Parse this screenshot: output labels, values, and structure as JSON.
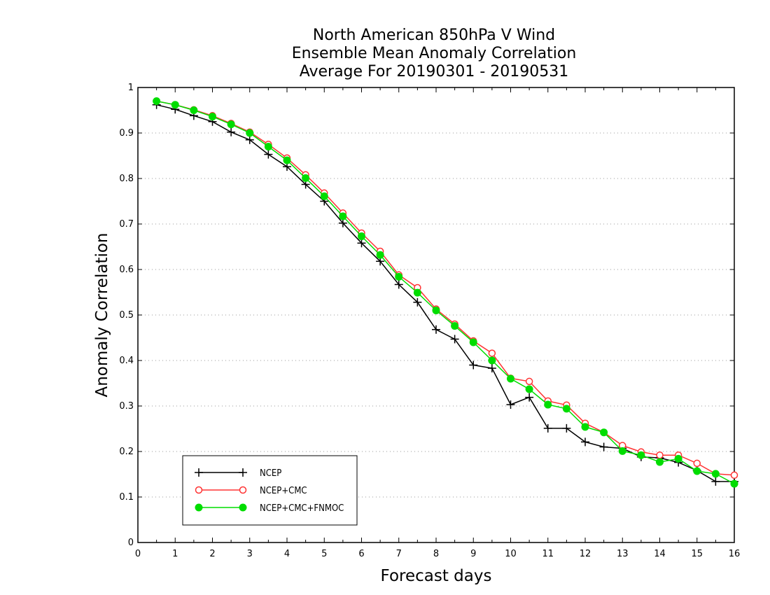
{
  "chart_data": {
    "type": "line",
    "title": [
      "North American 850hPa V Wind",
      "Ensemble Mean Anomaly Correlation",
      "Average For 20190301 - 20190531"
    ],
    "xlabel": "Forecast days",
    "ylabel": "Anomaly Correlation",
    "xlim": [
      0,
      16
    ],
    "ylim": [
      0,
      1
    ],
    "xticks": [
      "0",
      "1",
      "2",
      "3",
      "4",
      "5",
      "6",
      "7",
      "8",
      "9",
      "10",
      "11",
      "12",
      "13",
      "14",
      "15",
      "16"
    ],
    "yticks": [
      "0",
      "0.1",
      "0.2",
      "0.3",
      "0.4",
      "0.5",
      "0.6",
      "0.7",
      "0.8",
      "0.9",
      "1"
    ],
    "grid": "horizontal dotted",
    "legend_position": "bottom-left",
    "x": [
      0.5,
      1,
      1.5,
      2,
      2.5,
      3,
      3.5,
      4,
      4.5,
      5,
      5.5,
      6,
      6.5,
      7,
      7.5,
      8,
      8.5,
      9,
      9.5,
      10,
      10.5,
      11,
      11.5,
      12,
      12.5,
      13,
      13.5,
      14,
      14.5,
      15,
      15.5,
      16
    ],
    "series": [
      {
        "name": "NCEP",
        "color": "#000000",
        "marker": "plus",
        "values": [
          0.962,
          0.952,
          0.938,
          0.925,
          0.902,
          0.885,
          0.853,
          0.826,
          0.787,
          0.75,
          0.702,
          0.658,
          0.618,
          0.567,
          0.528,
          0.468,
          0.447,
          0.39,
          0.383,
          0.303,
          0.319,
          0.251,
          0.251,
          0.221,
          0.21,
          0.207,
          0.188,
          0.186,
          0.176,
          0.158,
          0.134,
          0.134
        ]
      },
      {
        "name": "NCEP+CMC",
        "color": "#ff3333",
        "marker": "open-circle",
        "values": [
          0.97,
          0.962,
          0.951,
          0.938,
          0.921,
          0.902,
          0.875,
          0.845,
          0.808,
          0.768,
          0.724,
          0.68,
          0.64,
          0.588,
          0.56,
          0.513,
          0.48,
          0.443,
          0.416,
          0.361,
          0.354,
          0.311,
          0.302,
          0.262,
          0.242,
          0.213,
          0.199,
          0.192,
          0.192,
          0.174,
          0.151,
          0.148
        ]
      },
      {
        "name": "NCEP+CMC+FNMOC",
        "color": "#00dd00",
        "marker": "filled-circle",
        "values": [
          0.97,
          0.962,
          0.95,
          0.936,
          0.919,
          0.9,
          0.87,
          0.84,
          0.801,
          0.761,
          0.717,
          0.673,
          0.632,
          0.584,
          0.549,
          0.51,
          0.476,
          0.44,
          0.4,
          0.36,
          0.337,
          0.303,
          0.294,
          0.254,
          0.242,
          0.201,
          0.192,
          0.177,
          0.184,
          0.157,
          0.151,
          0.129
        ]
      }
    ]
  }
}
